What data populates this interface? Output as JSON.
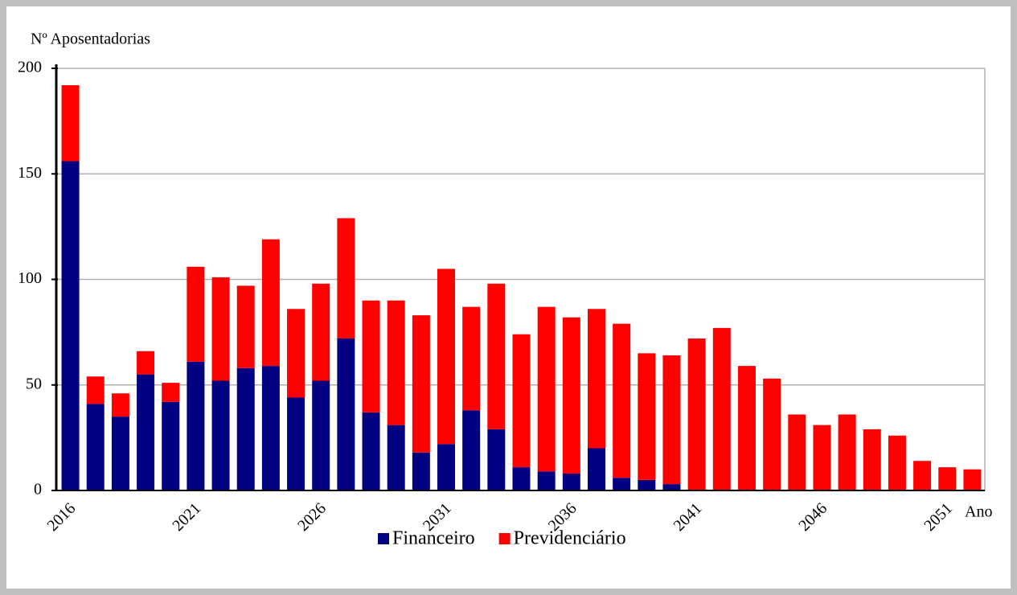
{
  "chart_data": {
    "type": "stacked_bar",
    "y_label": "Nº Aposentadorias",
    "x_label": "Ano",
    "categories": [
      "2016",
      null,
      null,
      null,
      null,
      "2021",
      null,
      null,
      null,
      null,
      "2026",
      null,
      null,
      null,
      null,
      "2031",
      null,
      null,
      null,
      null,
      "2036",
      null,
      null,
      null,
      null,
      "2041",
      null,
      null,
      null,
      null,
      "2046",
      null,
      null,
      null,
      null,
      "2051",
      null
    ],
    "series": [
      {
        "name": "Financeiro",
        "color": "#000080",
        "values": [
          156,
          41,
          35,
          55,
          42,
          61,
          52,
          58,
          59,
          44,
          52,
          72,
          37,
          31,
          18,
          22,
          38,
          29,
          11,
          9,
          8,
          20,
          6,
          5,
          3,
          0,
          0,
          0,
          0,
          0,
          0,
          0,
          0,
          0,
          0,
          0,
          0
        ]
      },
      {
        "name": "Previdenciário",
        "color": "#ff0000",
        "values": [
          36,
          13,
          11,
          11,
          9,
          45,
          49,
          39,
          60,
          42,
          46,
          57,
          53,
          59,
          65,
          83,
          49,
          69,
          63,
          78,
          74,
          66,
          73,
          60,
          61,
          72,
          77,
          59,
          53,
          36,
          31,
          36,
          29,
          26,
          14,
          11,
          10
        ]
      }
    ],
    "ylim": [
      0,
      200
    ],
    "yticks": [
      0,
      50,
      100,
      150,
      200
    ],
    "grid": true,
    "legend": "bottom"
  }
}
